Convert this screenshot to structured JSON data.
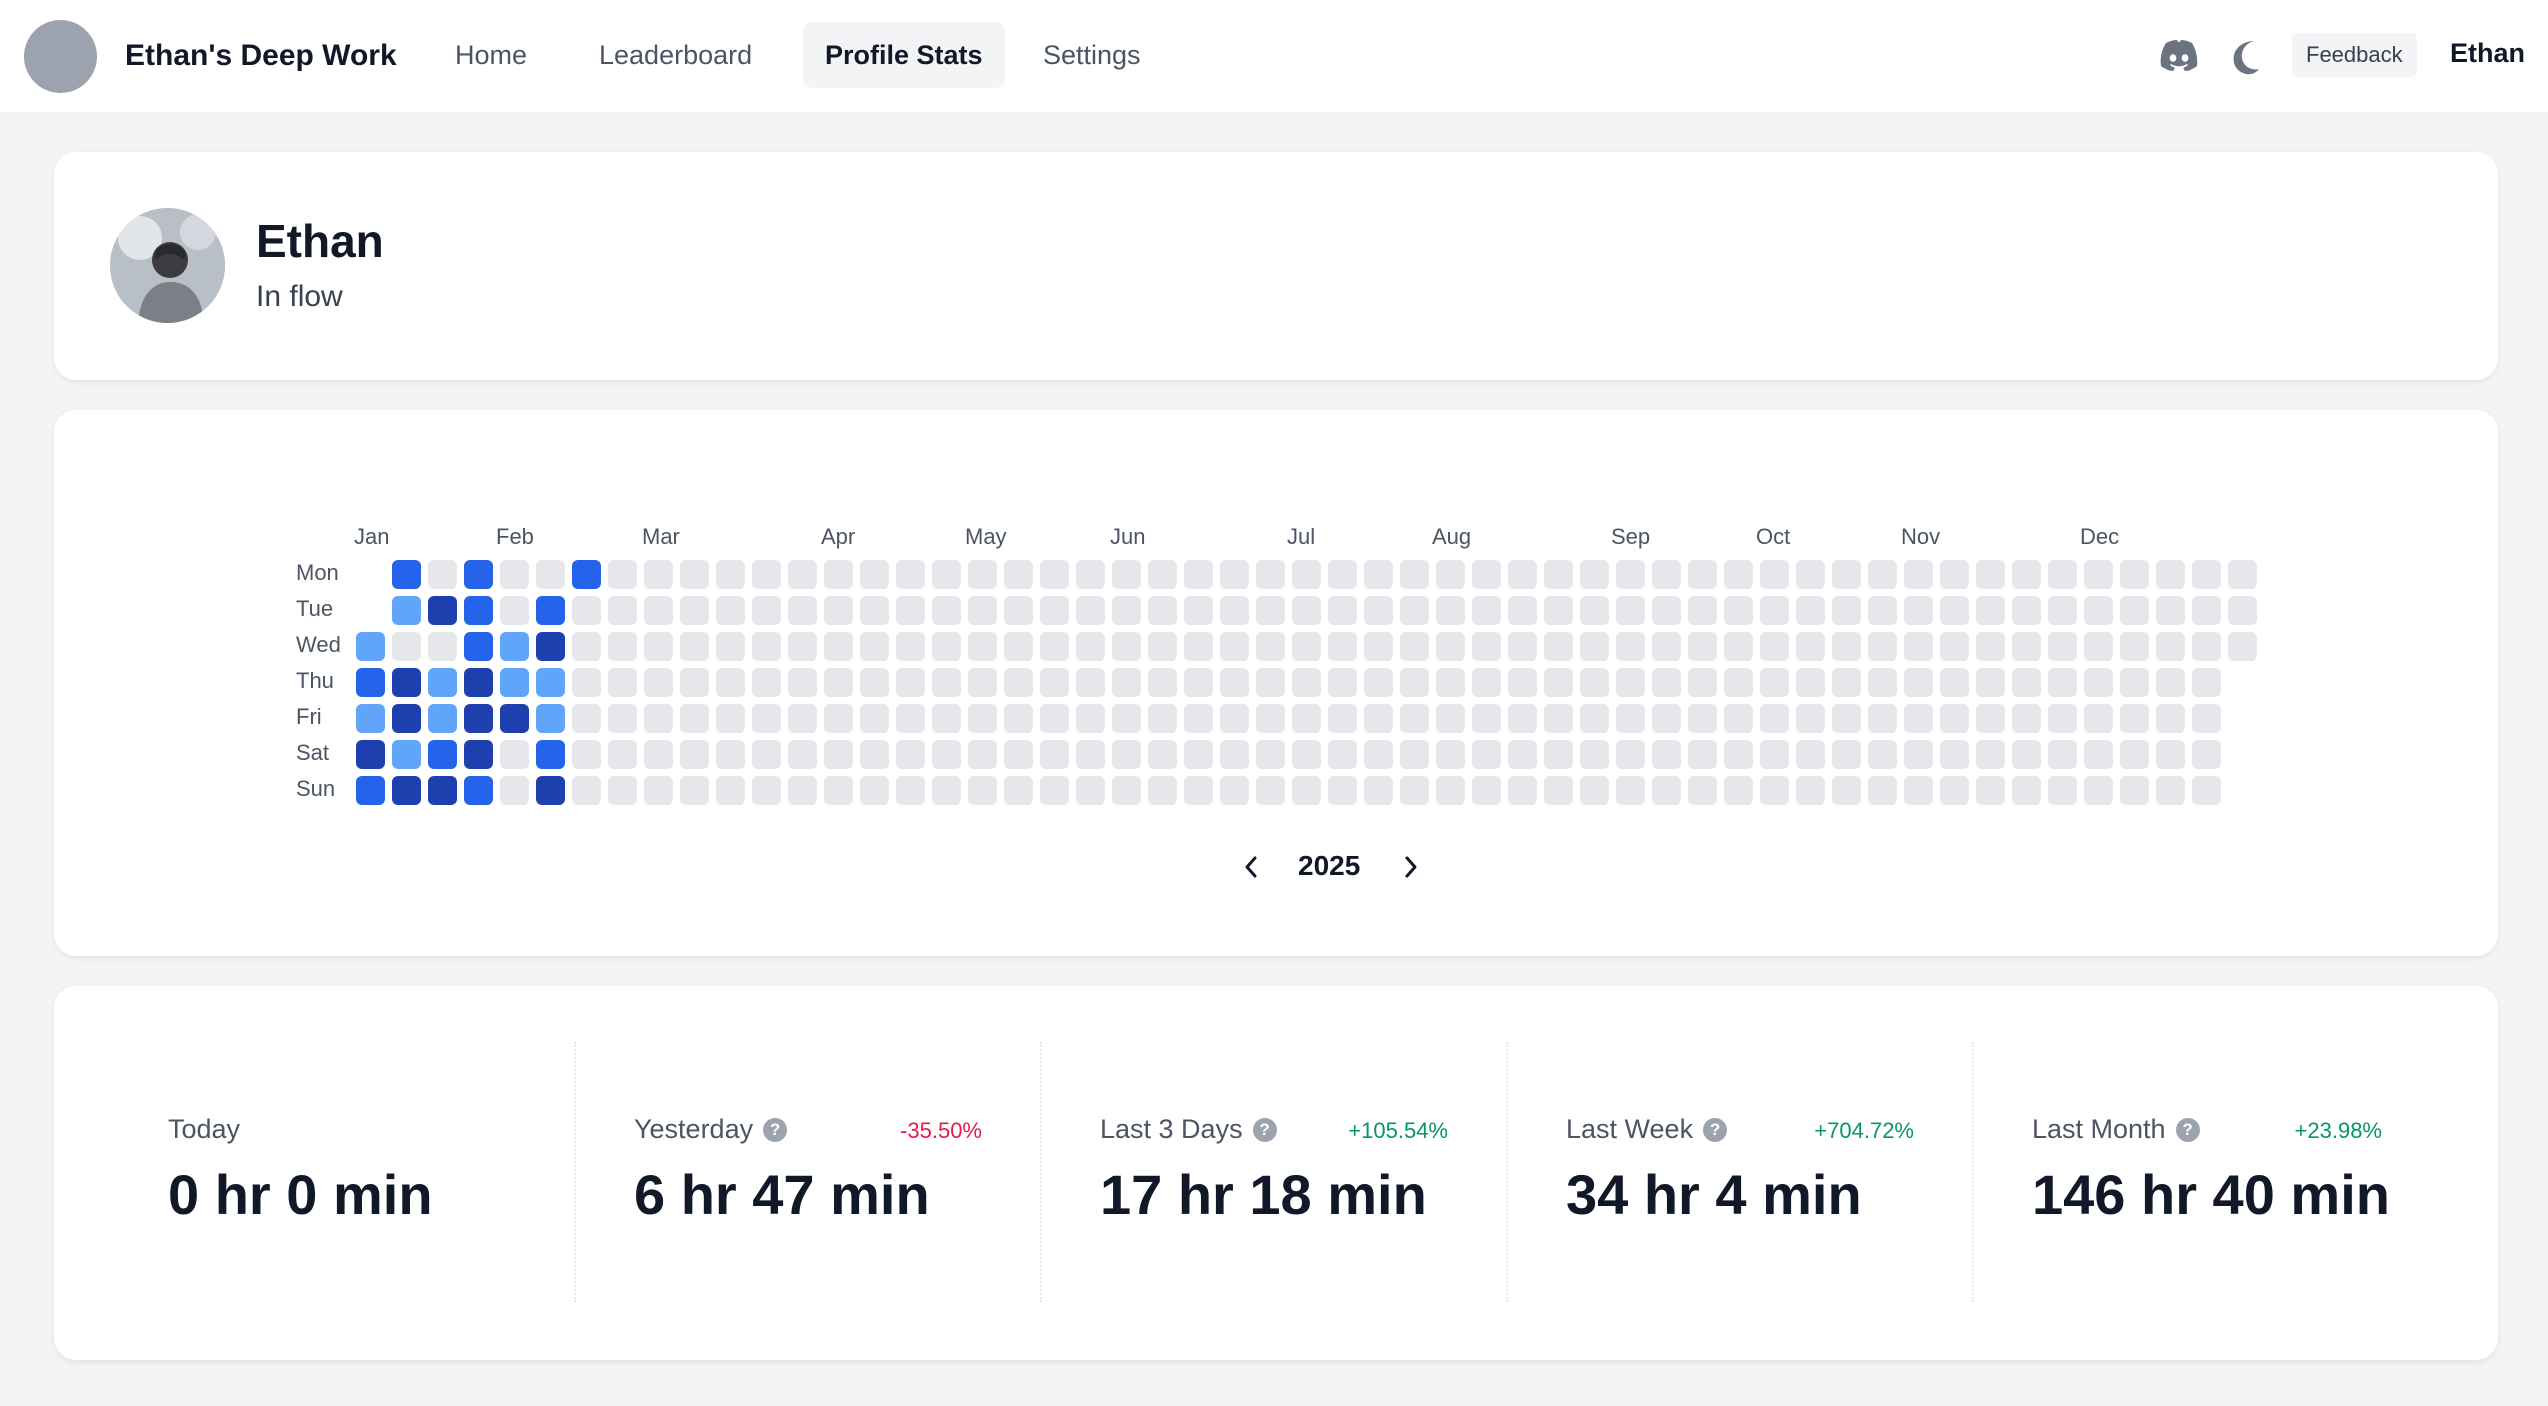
{
  "nav": {
    "brand": "Ethan's Deep Work",
    "tabs": [
      {
        "label": "Home",
        "active": false
      },
      {
        "label": "Leaderboard",
        "active": false
      },
      {
        "label": "Profile Stats",
        "active": true
      },
      {
        "label": "Settings",
        "active": false
      }
    ],
    "feedback_label": "Feedback",
    "user_name": "Ethan",
    "icons": [
      "discord-icon",
      "moon-icon"
    ]
  },
  "profile": {
    "name": "Ethan",
    "status": "In flow"
  },
  "heatmap": {
    "months": [
      "Jan",
      "Feb",
      "Mar",
      "Apr",
      "May",
      "Jun",
      "Jul",
      "Aug",
      "Sep",
      "Oct",
      "Nov",
      "Dec"
    ],
    "days": [
      "Mon",
      "Tue",
      "Wed",
      "Thu",
      "Fri",
      "Sat",
      "Sun"
    ],
    "year": "2025",
    "colors": {
      "empty": "#e5e7eb",
      "level1": "#60a5fa",
      "level2": "#2563eb",
      "level3": "#1e40af"
    },
    "active_weeks": [
      [
        null,
        2,
        0,
        2,
        0,
        0,
        2
      ],
      [
        null,
        1,
        3,
        2,
        0,
        2,
        null
      ],
      [
        1,
        0,
        0,
        2,
        1,
        3,
        null
      ],
      [
        2,
        3,
        1,
        3,
        1,
        1,
        null
      ],
      [
        1,
        3,
        1,
        3,
        3,
        1,
        null
      ],
      [
        3,
        1,
        2,
        3,
        0,
        2,
        null
      ],
      [
        2,
        3,
        3,
        2,
        0,
        3,
        null
      ]
    ]
  },
  "stats": [
    {
      "label": "Today",
      "value": "0 hr 0 min",
      "change": "",
      "help": false,
      "trend": ""
    },
    {
      "label": "Yesterday",
      "value": "6 hr 47 min",
      "change": "-35.50%",
      "help": true,
      "trend": "neg"
    },
    {
      "label": "Last 3 Days",
      "value": "17 hr 18 min",
      "change": "+105.54%",
      "help": true,
      "trend": "pos"
    },
    {
      "label": "Last Week",
      "value": "34 hr 4 min",
      "change": "+704.72%",
      "help": true,
      "trend": "pos"
    },
    {
      "label": "Last Month",
      "value": "146 hr 40 min",
      "change": "+23.98%",
      "help": true,
      "trend": "pos"
    }
  ]
}
